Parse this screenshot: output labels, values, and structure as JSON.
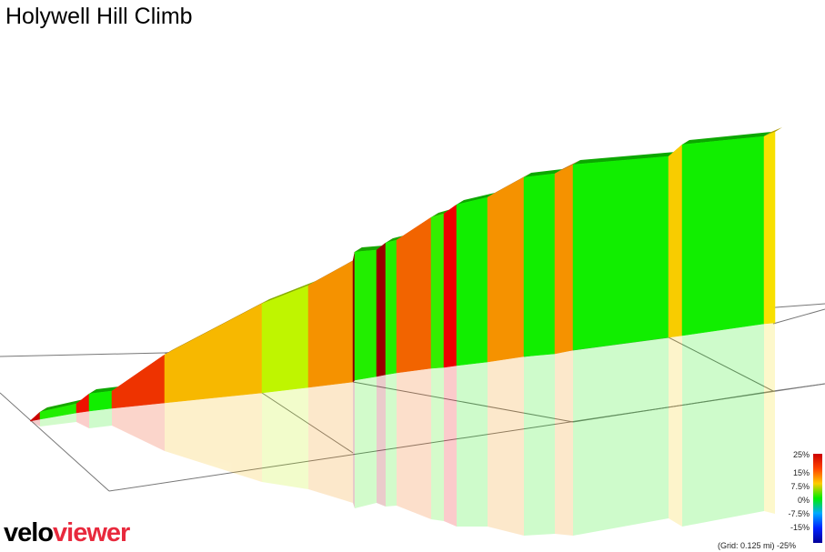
{
  "title": "Holywell Hill Climb",
  "chart_data": {
    "type": "area",
    "title": "Holywell Hill Climb",
    "gradient_segments": [
      {
        "color": "#cc0000"
      },
      {
        "color": "#22ee00"
      },
      {
        "color": "#ee1100"
      },
      {
        "color": "#11ee00"
      },
      {
        "color": "#ee3300"
      },
      {
        "color": "#f7b800"
      },
      {
        "color": "#bff500"
      },
      {
        "color": "#f59200"
      },
      {
        "color": "#880000"
      },
      {
        "color": "#22ee00"
      },
      {
        "color": "#990000"
      },
      {
        "color": "#22ee00"
      },
      {
        "color": "#f26400"
      },
      {
        "color": "#33ee00"
      },
      {
        "color": "#ee0000"
      },
      {
        "color": "#11ee00"
      },
      {
        "color": "#f59200"
      },
      {
        "color": "#11ee00"
      },
      {
        "color": "#f59200"
      },
      {
        "color": "#11ee00"
      },
      {
        "color": "#f8cc00"
      },
      {
        "color": "#11ee00"
      },
      {
        "color": "#f8e000"
      }
    ],
    "legend": {
      "labels": [
        "25%",
        "15%",
        "7.5%",
        "0%",
        "-7.5%",
        "-15%",
        "-25%"
      ],
      "colors": [
        "#cc0000",
        "#ff4400",
        "#ffcc00",
        "#00ee00",
        "#00aaff",
        "#0022ff",
        "#000099"
      ]
    },
    "grid_note": "(Grid: 0.125 mi)",
    "grid": true
  },
  "branding": {
    "part1": "velo",
    "part2": "viewer"
  }
}
